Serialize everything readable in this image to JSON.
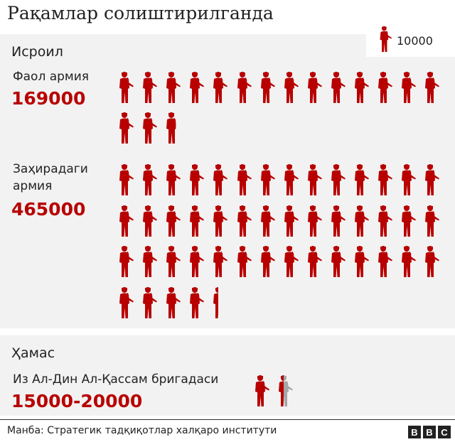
{
  "title": "Рақамлар солиштирилганда",
  "legend": {
    "unit_value": "10000",
    "icon": "soldier-icon"
  },
  "colors": {
    "filled": "#b80000",
    "empty": "#a6a6a6",
    "panel": "#f2f2f2"
  },
  "israel": {
    "heading": "Исроил",
    "active": {
      "label": "Фаол армия",
      "value": "169000"
    },
    "reserve": {
      "label_line1": "Заҳирадаги",
      "label_line2": "армия",
      "value": "465000"
    }
  },
  "hamas": {
    "heading": "Ҳамас",
    "group": {
      "label": "Из Ал-Дин Ал-Қассам бригадаси",
      "value": "15000-20000"
    }
  },
  "footer": {
    "source": "Манба: Стратегик тадқиқотлар халқаро институти",
    "logo": [
      "B",
      "B",
      "C"
    ]
  },
  "chart_data": {
    "type": "pictogram",
    "unit": 10000,
    "groups": [
      {
        "label": "Фаол армия",
        "value": 169000,
        "icons": 16.9
      },
      {
        "label": "Заҳирадаги армия",
        "value": 465000,
        "icons": 46.5
      },
      {
        "label": "Из Ал-Дин Ал-Қассам бригадаси",
        "value_min": 15000,
        "value_max": 20000,
        "icons_min": 1.5,
        "icons_max": 2
      }
    ]
  }
}
